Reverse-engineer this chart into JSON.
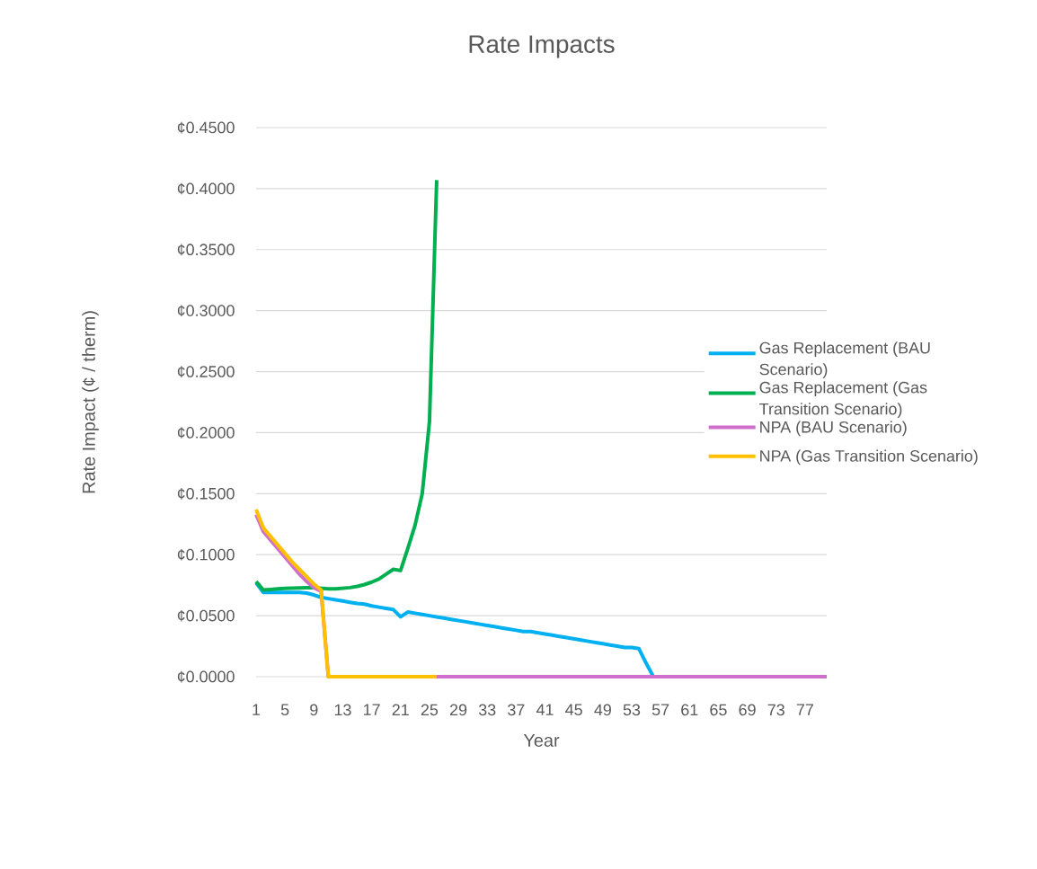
{
  "chart_data": {
    "type": "line",
    "title": "Rate Impacts",
    "xlabel": "Year",
    "ylabel": "Rate Impact (¢ / therm)",
    "x": [
      1,
      2,
      3,
      4,
      5,
      6,
      7,
      8,
      9,
      10,
      11,
      12,
      13,
      14,
      15,
      16,
      17,
      18,
      19,
      20,
      21,
      22,
      23,
      24,
      25,
      26,
      27,
      28,
      29,
      30,
      31,
      32,
      33,
      34,
      35,
      36,
      37,
      38,
      39,
      40,
      41,
      42,
      43,
      44,
      45,
      46,
      47,
      48,
      49,
      50,
      51,
      52,
      53,
      54,
      55,
      56,
      57,
      58,
      59,
      60,
      61,
      62,
      63,
      64,
      65,
      66,
      67,
      68,
      69,
      70,
      71,
      72,
      73,
      74,
      75,
      76,
      77,
      78,
      79,
      80
    ],
    "xlim": [
      1,
      80
    ],
    "xticks": [
      1,
      5,
      9,
      13,
      17,
      21,
      25,
      29,
      33,
      37,
      41,
      45,
      49,
      53,
      57,
      61,
      65,
      69,
      73,
      77
    ],
    "ylim": [
      0,
      0.45
    ],
    "yticks": [
      {
        "value": 0,
        "label": "¢0.0000"
      },
      {
        "value": 0.05,
        "label": "¢0.0500"
      },
      {
        "value": 0.1,
        "label": "¢0.1000"
      },
      {
        "value": 0.15,
        "label": "¢0.1500"
      },
      {
        "value": 0.2,
        "label": "¢0.2000"
      },
      {
        "value": 0.25,
        "label": "¢0.2500"
      },
      {
        "value": 0.3,
        "label": "¢0.3000"
      },
      {
        "value": 0.35,
        "label": "¢0.3500"
      },
      {
        "value": 0.4,
        "label": "¢0.4000"
      },
      {
        "value": 0.45,
        "label": "¢0.4500"
      }
    ],
    "grid": "y",
    "legend": "right",
    "series": [
      {
        "name": "Gas Replacement (BAU Scenario)",
        "color": "#00b0f0",
        "values": [
          0.077,
          0.069,
          0.069,
          0.069,
          0.069,
          0.069,
          0.069,
          0.0685,
          0.067,
          0.065,
          0.064,
          0.063,
          0.062,
          0.061,
          0.06,
          0.0595,
          0.058,
          0.057,
          0.056,
          0.055,
          0.049,
          0.053,
          0.052,
          0.051,
          0.05,
          0.049,
          0.048,
          0.047,
          0.046,
          0.045,
          0.044,
          0.043,
          0.042,
          0.041,
          0.04,
          0.039,
          0.038,
          0.037,
          0.037,
          0.036,
          0.035,
          0.034,
          0.033,
          0.032,
          0.031,
          0.03,
          0.029,
          0.028,
          0.027,
          0.026,
          0.025,
          0.024,
          0.024,
          0.023,
          0.011,
          0,
          null,
          null,
          null,
          null,
          null,
          null,
          null,
          null,
          null,
          null,
          null,
          null,
          null,
          null,
          null,
          null,
          null,
          null,
          null,
          null,
          null,
          null,
          null,
          null
        ]
      },
      {
        "name": "Gas Replacement (Gas Transition Scenario)",
        "color": "#00b050",
        "values": [
          0.078,
          0.071,
          0.0715,
          0.072,
          0.0723,
          0.0726,
          0.0728,
          0.073,
          0.073,
          0.0725,
          0.072,
          0.072,
          0.0725,
          0.073,
          0.074,
          0.0755,
          0.0775,
          0.08,
          0.084,
          0.088,
          0.087,
          0.105,
          0.124,
          0.15,
          0.209,
          0.407,
          null,
          null,
          null,
          null,
          null,
          null,
          null,
          null,
          null,
          null,
          null,
          null,
          null,
          null,
          null,
          null,
          null,
          null,
          null,
          null,
          null,
          null,
          null,
          null,
          null,
          null,
          null,
          null,
          null,
          null,
          null,
          null,
          null,
          null,
          null,
          null,
          null,
          null,
          null,
          null,
          null,
          null,
          null,
          null,
          null,
          null,
          null,
          null,
          null,
          null,
          null,
          null,
          null,
          null
        ]
      },
      {
        "name": "NPA (BAU Scenario)",
        "color": "#d06fcb",
        "values": [
          0.133,
          0.119,
          0.112,
          0.105,
          0.098,
          0.091,
          0.084,
          0.078,
          0.073,
          0.07,
          0,
          0,
          0,
          0,
          0,
          0,
          0,
          0,
          0,
          0,
          0,
          0,
          0,
          0,
          0,
          0,
          0,
          0,
          0,
          0,
          0,
          0,
          0,
          0,
          0,
          0,
          0,
          0,
          0,
          0,
          0,
          0,
          0,
          0,
          0,
          0,
          0,
          0,
          0,
          0,
          0,
          0,
          0,
          0,
          0,
          0,
          0,
          0,
          0,
          0,
          0,
          0,
          0,
          0,
          0,
          0,
          0,
          0,
          0,
          0,
          0,
          0,
          0,
          0,
          0,
          0,
          0,
          0,
          0,
          0
        ]
      },
      {
        "name": "NPA (Gas Transition Scenario)",
        "color": "#ffc000",
        "values": [
          0.137,
          0.122,
          0.115,
          0.108,
          0.101,
          0.094,
          0.088,
          0.082,
          0.076,
          0.071,
          0,
          0,
          0,
          0,
          0,
          0,
          0,
          0,
          0,
          0,
          0,
          0,
          0,
          0,
          0,
          0,
          null,
          null,
          null,
          null,
          null,
          null,
          null,
          null,
          null,
          null,
          null,
          null,
          null,
          null,
          null,
          null,
          null,
          null,
          null,
          null,
          null,
          null,
          null,
          null,
          null,
          null,
          null,
          null,
          null,
          null,
          null,
          null,
          null,
          null,
          null,
          null,
          null,
          null,
          null,
          null,
          null,
          null,
          null,
          null,
          null,
          null,
          null,
          null,
          null,
          null,
          null,
          null,
          null,
          null
        ]
      }
    ]
  }
}
